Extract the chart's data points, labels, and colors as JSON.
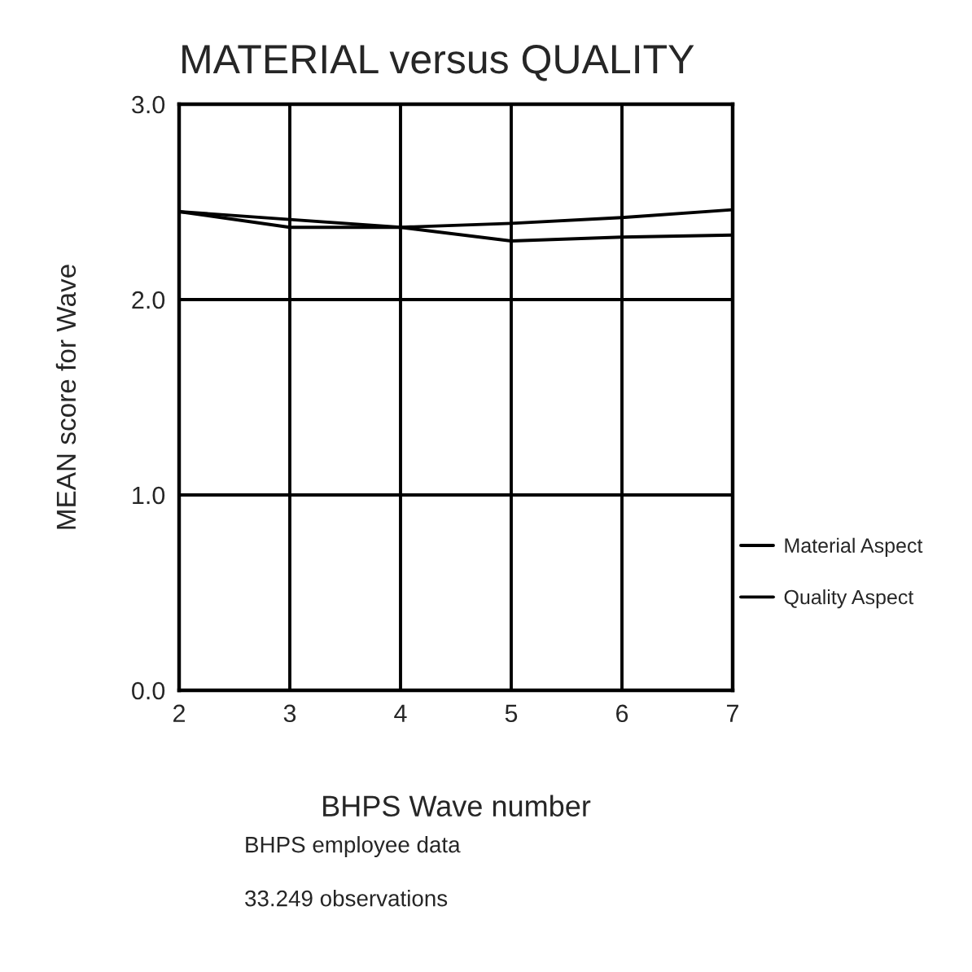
{
  "chart_data": {
    "type": "line",
    "title": "MATERIAL versus QUALITY",
    "xlabel": "BHPS Wave number",
    "ylabel": "MEAN score for Wave",
    "x": [
      2,
      3,
      4,
      5,
      6,
      7
    ],
    "series": [
      {
        "name": "Material Aspect",
        "color": "#000000",
        "values": [
          2.45,
          2.41,
          2.37,
          2.39,
          2.42,
          2.46
        ]
      },
      {
        "name": "Quality Aspect",
        "color": "#000000",
        "values": [
          2.45,
          2.37,
          2.37,
          2.3,
          2.32,
          2.33
        ]
      }
    ],
    "xlim": [
      2,
      7
    ],
    "xticks": [
      2,
      3,
      4,
      5,
      6,
      7
    ],
    "ylim": [
      0,
      3
    ],
    "yticks": [
      {
        "value": 0,
        "label": "0.0"
      },
      {
        "value": 1,
        "label": "1.0"
      },
      {
        "value": 2,
        "label": "2.0"
      },
      {
        "value": 3,
        "label": "3.0"
      }
    ],
    "grid": true,
    "legend": "right",
    "marker": "none",
    "line_style": "solid",
    "annotations": [
      "BHPS employee data",
      "33.249 observations"
    ]
  }
}
